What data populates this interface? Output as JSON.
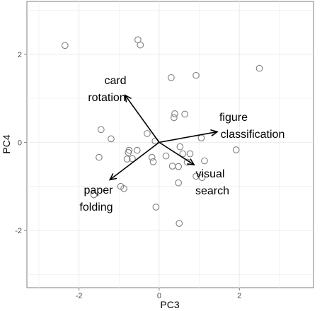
{
  "chart_data": {
    "type": "scatter",
    "title": "",
    "xlabel": "PC3",
    "ylabel": "PC4",
    "xlim": [
      -3.3,
      3.85
    ],
    "ylim": [
      -3.3,
      3.2
    ],
    "x_ticks": [
      -2,
      0,
      2
    ],
    "y_ticks": [
      -2,
      0,
      2
    ],
    "x_tick_labels": [
      "-2",
      "0",
      "2"
    ],
    "y_tick_labels": [
      "-2",
      "0",
      "2"
    ],
    "grid": true,
    "background": "#ffffff",
    "grid_color": "#ebebeb",
    "point_color": "#7f7f7f",
    "points": [
      {
        "x": -2.35,
        "y": 2.2
      },
      {
        "x": -0.53,
        "y": 2.33
      },
      {
        "x": -0.47,
        "y": 2.21
      },
      {
        "x": 0.3,
        "y": 1.47
      },
      {
        "x": 0.92,
        "y": 1.52
      },
      {
        "x": 2.5,
        "y": 1.68
      },
      {
        "x": 0.39,
        "y": 0.65
      },
      {
        "x": 0.64,
        "y": 0.64
      },
      {
        "x": 0.37,
        "y": 0.56
      },
      {
        "x": -1.45,
        "y": 0.29
      },
      {
        "x": -0.3,
        "y": 0.2
      },
      {
        "x": -1.2,
        "y": 0.08
      },
      {
        "x": -0.1,
        "y": 0.03
      },
      {
        "x": 1.05,
        "y": 0.1
      },
      {
        "x": 0.52,
        "y": -0.1
      },
      {
        "x": 1.92,
        "y": -0.17
      },
      {
        "x": -0.75,
        "y": -0.18
      },
      {
        "x": -0.55,
        "y": -0.18
      },
      {
        "x": -0.77,
        "y": -0.23
      },
      {
        "x": 0.59,
        "y": -0.26
      },
      {
        "x": 0.77,
        "y": -0.26
      },
      {
        "x": 0.17,
        "y": -0.31
      },
      {
        "x": -0.18,
        "y": -0.34
      },
      {
        "x": -1.5,
        "y": -0.34
      },
      {
        "x": -0.67,
        "y": -0.37
      },
      {
        "x": -0.8,
        "y": -0.38
      },
      {
        "x": 1.13,
        "y": -0.42
      },
      {
        "x": -0.15,
        "y": -0.44
      },
      {
        "x": 0.7,
        "y": -0.45
      },
      {
        "x": 0.33,
        "y": -0.54
      },
      {
        "x": 0.48,
        "y": -0.55
      },
      {
        "x": 0.92,
        "y": -0.77
      },
      {
        "x": 1.07,
        "y": -0.8
      },
      {
        "x": 0.48,
        "y": -0.92
      },
      {
        "x": -0.96,
        "y": -1.0
      },
      {
        "x": -0.88,
        "y": -1.05
      },
      {
        "x": -1.63,
        "y": -1.19
      },
      {
        "x": -0.08,
        "y": -1.47
      },
      {
        "x": 0.5,
        "y": -1.84
      }
    ],
    "vectors": [
      {
        "name": "card rotation",
        "label_lines": [
          "card",
          "rotation"
        ],
        "x": -0.85,
        "y": 1.07
      },
      {
        "name": "figure classification",
        "label_lines": [
          "figure",
          "classification"
        ],
        "x": 1.45,
        "y": 0.24
      },
      {
        "name": "visual search",
        "label_lines": [
          "visual",
          "search"
        ],
        "x": 0.87,
        "y": -0.51
      },
      {
        "name": "paper folding",
        "label_lines": [
          "paper",
          "folding"
        ],
        "x": -1.23,
        "y": -0.85
      }
    ]
  }
}
